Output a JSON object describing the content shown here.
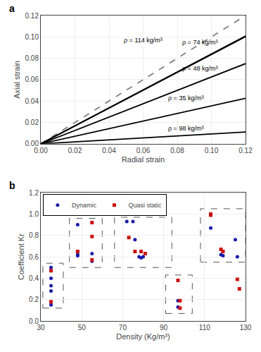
{
  "chart_data": [
    {
      "type": "line",
      "title": "a",
      "xlabel": "Radial strain",
      "ylabel": "Axial strain",
      "xlim": [
        0,
        0.12
      ],
      "ylim": [
        0,
        0.12
      ],
      "xticks": [
        {
          "value": 0,
          "label": "0.00"
        },
        0.02,
        0.04,
        0.06,
        0.08,
        {
          "value": 0.1,
          "label": "0.10"
        },
        0.12
      ],
      "yticks": [
        {
          "value": 0,
          "label": "0.00"
        },
        0.02,
        0.04,
        0.06,
        0.08,
        {
          "value": 0.1,
          "label": "0.10"
        },
        0.12
      ],
      "grid": true,
      "series": [
        {
          "x": [
            0,
            0.12
          ],
          "values": [
            0,
            0.12
          ],
          "color": "gray",
          "line_style": "dashed"
        },
        {
          "x": [
            0,
            0.12
          ],
          "values": [
            0,
            0.1008
          ],
          "color": "black",
          "line_style": "solid"
        },
        {
          "x": [
            0,
            0.12
          ],
          "values": [
            0,
            0.1002
          ],
          "color": "black",
          "line_style": "solid"
        },
        {
          "x": [
            0,
            0.12
          ],
          "values": [
            0,
            0.075
          ],
          "color": "black",
          "line_style": "solid"
        },
        {
          "x": [
            0,
            0.12
          ],
          "values": [
            0,
            0.0426
          ],
          "color": "black",
          "line_style": "solid"
        },
        {
          "x": [
            0,
            0.12
          ],
          "values": [
            0,
            0.01104
          ],
          "color": "black",
          "line_style": "solid"
        }
      ],
      "annotations": [
        {
          "text": "ρ = 114 kg/m³",
          "x": 0.048,
          "y": 0.092
        },
        {
          "text": "ρ = 74 kg/m³",
          "x": 0.082,
          "y": 0.09
        },
        {
          "text": "ρ = 48 kg/m³",
          "x": 0.082,
          "y": 0.066
        },
        {
          "text": "ρ = 35 kg/m³",
          "x": 0.074,
          "y": 0.038
        },
        {
          "text": "ρ = 98 kg/m³",
          "x": 0.074,
          "y": 0.01
        }
      ]
    },
    {
      "type": "scatter",
      "title": "b",
      "xlabel": "Density (Kg/m³)",
      "ylabel": "Coefficient Kr",
      "xlim": [
        30,
        130
      ],
      "ylim": [
        0,
        1.2
      ],
      "xticks": [
        30,
        50,
        70,
        90,
        110,
        130
      ],
      "yticks": [
        {
          "value": 0,
          "label": "0.0"
        },
        0.2,
        0.4,
        0.6,
        0.8,
        {
          "value": 1.0,
          "label": "1.0"
        },
        1.2
      ],
      "grid": true,
      "legend": "upper left",
      "series": [
        {
          "name": "Dynamic",
          "color": "#1a1aaa",
          "marker": "circle",
          "x": [
            35,
            35,
            35,
            35,
            35,
            48,
            48,
            48,
            48,
            55,
            55,
            72,
            75,
            76,
            78,
            79,
            80,
            97,
            97,
            113,
            113,
            118,
            119,
            125,
            126
          ],
          "values": [
            0.5,
            0.4,
            0.33,
            0.28,
            0.15,
            0.9,
            0.65,
            0.62,
            0.61,
            0.63,
            0.56,
            0.93,
            0.93,
            0.76,
            0.6,
            0.59,
            0.6,
            0.19,
            0.13,
            1.0,
            0.87,
            0.62,
            0.61,
            0.76,
            0.6
          ]
        },
        {
          "name": "Quasi static",
          "color": "#cc1111",
          "marker": "square",
          "x": [
            35,
            35,
            48,
            55,
            55,
            55,
            73,
            76,
            79,
            81,
            97,
            98,
            98,
            113,
            113,
            118,
            119,
            126,
            127
          ],
          "values": [
            0.47,
            0.18,
            0.65,
            0.92,
            0.79,
            0.57,
            0.78,
            0.65,
            0.65,
            0.63,
            0.38,
            0.19,
            0.12,
            1.0,
            0.99,
            0.67,
            0.65,
            0.39,
            0.3
          ]
        }
      ],
      "boxes": [
        {
          "x0": 31,
          "x1": 41,
          "y0": 0.12,
          "y1": 0.54,
          "color": "#555555",
          "line_style": "dashed"
        },
        {
          "x0": 44,
          "x1": 60,
          "y0": 0.5,
          "y1": 0.96,
          "color": "#555555",
          "line_style": "dashed"
        },
        {
          "x0": 66,
          "x1": 94,
          "y0": 0.5,
          "y1": 0.97,
          "color": "#555555",
          "line_style": "dashed"
        },
        {
          "x0": 91,
          "x1": 104,
          "y0": 0.07,
          "y1": 0.43,
          "color": "#555555",
          "line_style": "dashed"
        },
        {
          "x0": 108,
          "x1": 130,
          "y0": 0.55,
          "y1": 1.05,
          "color": "#555555",
          "line_style": "dashed"
        }
      ]
    }
  ]
}
